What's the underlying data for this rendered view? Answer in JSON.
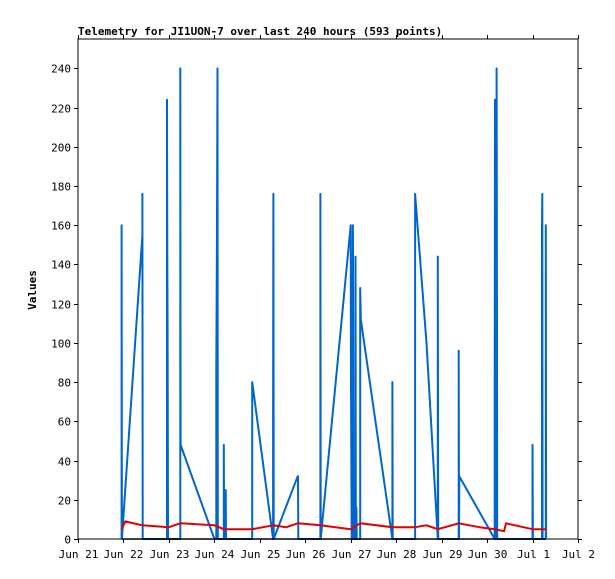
{
  "chart_data": {
    "type": "line",
    "title": "Telemetry for JI1UON-7 over last 240 hours (593 points)",
    "xlabel": "",
    "ylabel": "Values",
    "x_ticks": [
      "Jun 21",
      "Jun 22",
      "Jun 23",
      "Jun 24",
      "Jun 25",
      "Jun 26",
      "Jun 27",
      "Jun 28",
      "Jun 29",
      "Jun 30",
      "Jul 1",
      "Jul 2"
    ],
    "xlim": [
      "Jun 21 00:00",
      "Jul 2 00:00"
    ],
    "ylim": [
      0,
      255
    ],
    "y_ticks": [
      0,
      20,
      40,
      60,
      80,
      100,
      120,
      140,
      160,
      180,
      200,
      220,
      240
    ],
    "grid": false,
    "legend": "none",
    "colors": {
      "series_blue": "#0066cc",
      "series_red": "#e00000",
      "series_black": "#000000",
      "axis": "#000000"
    },
    "series": [
      {
        "color": "#0066cc",
        "points": [
          [
            "Jun 21 23:00",
            0
          ],
          [
            "Jun 21 23:00",
            160
          ],
          [
            "Jun 21 23:10",
            0
          ],
          [
            "Jun 22 10:00",
            155
          ],
          [
            "Jun 22 10:00",
            176
          ],
          [
            "Jun 22 10:10",
            0
          ],
          [
            "Jun 22 23:00",
            0
          ],
          [
            "Jun 22 23:00",
            224
          ],
          [
            "Jun 22 23:10",
            145
          ],
          [
            "Jun 22 23:20",
            108
          ],
          [
            "Jun 22 23:30",
            0
          ],
          [
            "Jun 23 06:00",
            0
          ],
          [
            "Jun 23 06:00",
            240
          ],
          [
            "Jun 23 06:10",
            48
          ],
          [
            "Jun 24 00:00",
            0
          ],
          [
            "Jun 24 01:00",
            0
          ],
          [
            "Jun 24 01:00",
            88
          ],
          [
            "Jun 24 01:20",
            147
          ],
          [
            "Jun 24 01:40",
            240
          ],
          [
            "Jun 24 01:50",
            0
          ],
          [
            "Jun 24 05:00",
            0
          ],
          [
            "Jun 24 05:00",
            48
          ],
          [
            "Jun 24 05:10",
            0
          ],
          [
            "Jun 24 06:00",
            0
          ],
          [
            "Jun 24 06:00",
            25
          ],
          [
            "Jun 24 06:10",
            0
          ],
          [
            "Jun 24 20:00",
            0
          ],
          [
            "Jun 24 20:00",
            80
          ],
          [
            "Jun 25 07:00",
            0
          ],
          [
            "Jun 25 07:00",
            64
          ],
          [
            "Jun 25 07:10",
            176
          ],
          [
            "Jun 25 07:20",
            0
          ],
          [
            "Jun 25 20:00",
            32
          ],
          [
            "Jun 25 20:10",
            32
          ],
          [
            "Jun 25 20:20",
            0
          ],
          [
            "Jun 26 08:00",
            0
          ],
          [
            "Jun 26 08:00",
            176
          ],
          [
            "Jun 26 08:10",
            0
          ],
          [
            "Jun 27 00:00",
            160
          ],
          [
            "Jun 27 00:10",
            80
          ],
          [
            "Jun 27 00:30",
            0
          ],
          [
            "Jun 27 01:00",
            0
          ],
          [
            "Jun 27 01:00",
            100
          ],
          [
            "Jun 27 01:10",
            160
          ],
          [
            "Jun 27 01:20",
            80
          ],
          [
            "Jun 27 01:30",
            0
          ],
          [
            "Jun 27 02:30",
            0
          ],
          [
            "Jun 27 02:30",
            144
          ],
          [
            "Jun 27 02:40",
            0
          ],
          [
            "Jun 27 03:00",
            0
          ],
          [
            "Jun 27 03:00",
            16
          ],
          [
            "Jun 27 03:10",
            0
          ],
          [
            "Jun 27 05:00",
            0
          ],
          [
            "Jun 27 05:00",
            128
          ],
          [
            "Jun 27 05:20",
            112
          ],
          [
            "Jun 27 22:00",
            0
          ],
          [
            "Jun 27 22:00",
            80
          ],
          [
            "Jun 27 22:10",
            0
          ],
          [
            "Jun 28 10:00",
            0
          ],
          [
            "Jun 28 10:00",
            176
          ],
          [
            "Jun 28 16:00",
            100
          ],
          [
            "Jun 28 22:00",
            0
          ],
          [
            "Jun 28 22:00",
            144
          ],
          [
            "Jun 28 22:10",
            0
          ],
          [
            "Jun 29 09:00",
            0
          ],
          [
            "Jun 29 09:00",
            96
          ],
          [
            "Jun 29 09:10",
            0
          ],
          [
            "Jun 29 09:20",
            32
          ],
          [
            "Jun 30 04:00",
            0
          ],
          [
            "Jun 30 04:00",
            80
          ],
          [
            "Jun 30 04:10",
            224
          ],
          [
            "Jun 30 04:20",
            224
          ],
          [
            "Jun 30 04:30",
            0
          ],
          [
            "Jun 30 05:00",
            0
          ],
          [
            "Jun 30 05:00",
            240
          ],
          [
            "Jun 30 05:10",
            144
          ],
          [
            "Jun 30 05:20",
            0
          ],
          [
            "Jul 1 00:00",
            0
          ],
          [
            "Jul 1 00:00",
            48
          ],
          [
            "Jul 1 00:10",
            0
          ],
          [
            "Jul 1 05:00",
            0
          ],
          [
            "Jul 1 05:00",
            160
          ],
          [
            "Jul 1 05:10",
            176
          ],
          [
            "Jul 1 05:20",
            0
          ],
          [
            "Jul 1 07:00",
            0
          ],
          [
            "Jul 1 07:00",
            160
          ],
          [
            "Jul 1 07:10",
            0
          ]
        ]
      },
      {
        "color": "#e00000",
        "points": [
          [
            "Jun 21 23:00",
            5
          ],
          [
            "Jun 22 01:00",
            9
          ],
          [
            "Jun 22 10:00",
            7
          ],
          [
            "Jun 23 00:00",
            6
          ],
          [
            "Jun 23 06:00",
            8
          ],
          [
            "Jun 24 00:00",
            7
          ],
          [
            "Jun 24 05:00",
            5
          ],
          [
            "Jun 24 20:00",
            5
          ],
          [
            "Jun 25 07:00",
            7
          ],
          [
            "Jun 25 14:00",
            6
          ],
          [
            "Jun 25 20:00",
            8
          ],
          [
            "Jun 26 08:00",
            7
          ],
          [
            "Jun 27 00:00",
            5
          ],
          [
            "Jun 27 05:00",
            8
          ],
          [
            "Jun 27 22:00",
            6
          ],
          [
            "Jun 28 10:00",
            6
          ],
          [
            "Jun 28 16:00",
            7
          ],
          [
            "Jun 28 22:00",
            5
          ],
          [
            "Jun 29 09:00",
            8
          ],
          [
            "Jun 29 20:00",
            6
          ],
          [
            "Jun 30 04:00",
            5
          ],
          [
            "Jun 30 09:00",
            4
          ],
          [
            "Jun 30 10:00",
            8
          ],
          [
            "Jul 1 00:00",
            5
          ],
          [
            "Jul 1 07:00",
            5
          ]
        ]
      },
      {
        "color": "#000000",
        "points": [
          [
            "Jun 21 23:00",
            0
          ],
          [
            "Jul 1 07:00",
            0
          ]
        ]
      }
    ]
  }
}
